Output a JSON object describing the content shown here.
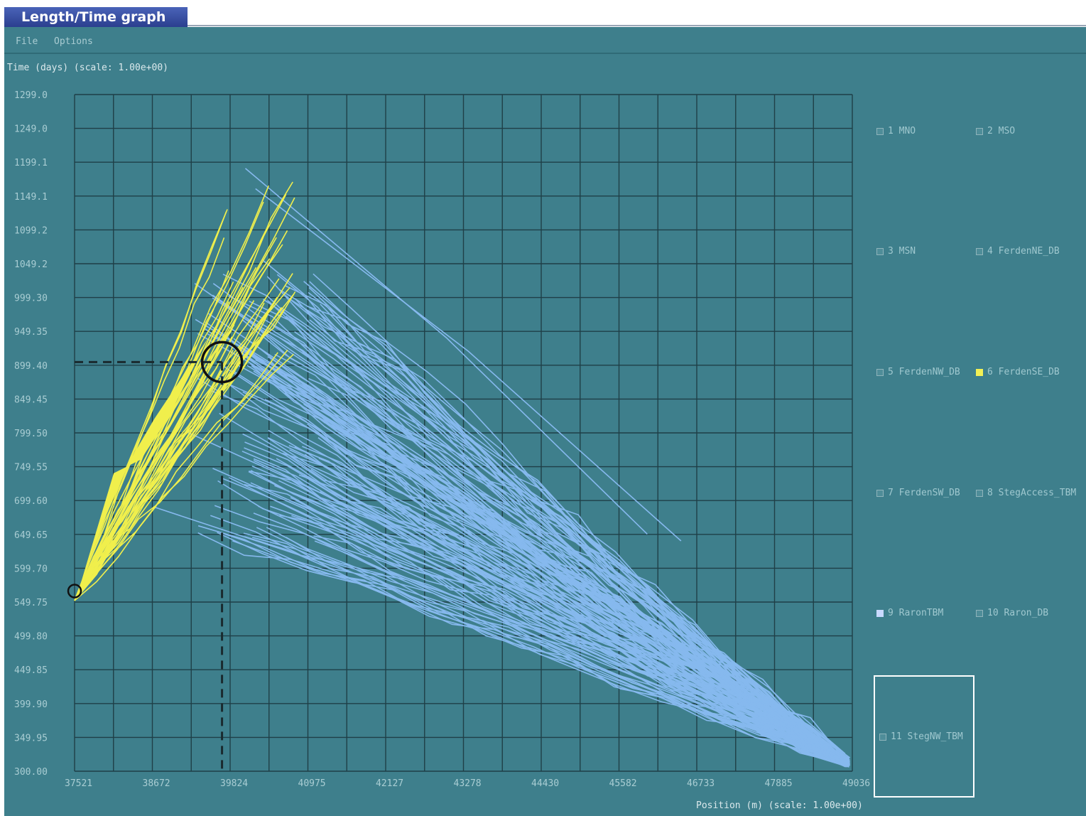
{
  "window": {
    "title": "Length/Time graph"
  },
  "menu": [
    "File",
    "Options"
  ],
  "axes": {
    "y_label": "Time (days) (scale: 1.00e+00)",
    "x_label": "Position (m) (scale: 1.00e+00)",
    "y_ticks": [
      "1299.0",
      "1249.0",
      "1199.1",
      "1149.1",
      "1099.2",
      "1049.2",
      "999.30",
      "949.35",
      "899.40",
      "849.45",
      "799.50",
      "749.55",
      "699.60",
      "649.65",
      "599.70",
      "549.75",
      "499.80",
      "449.85",
      "399.90",
      "349.95",
      "300.00"
    ],
    "x_ticks": [
      "37521",
      "38672",
      "39824",
      "40975",
      "42127",
      "43278",
      "44430",
      "45582",
      "46733",
      "47885",
      "49036"
    ]
  },
  "legend": [
    {
      "label": "1 MNO",
      "state": "off"
    },
    {
      "label": "2 MSO",
      "state": "off"
    },
    {
      "label": "3 MSN",
      "state": "off"
    },
    {
      "label": "4 FerdenNE_DB",
      "state": "off"
    },
    {
      "label": "5 FerdenNW_DB",
      "state": "off"
    },
    {
      "label": "6 FerdenSE_DB",
      "state": "on"
    },
    {
      "label": "7 FerdenSW_DB",
      "state": "off"
    },
    {
      "label": "8 StegAccess_TBM",
      "state": "off"
    },
    {
      "label": "9 RaronTBM",
      "state": "partial"
    },
    {
      "label": "10 Raron_DB",
      "state": "off"
    },
    {
      "label": "11 StegNW_TBM",
      "state": "off"
    }
  ],
  "colors": {
    "yellow_series": "#f0ef4c",
    "blue_series": "#86b9ee",
    "background": "#3e7f8c",
    "grid": "#1f3f47"
  },
  "chart_data": {
    "type": "line",
    "xlim": [
      37521,
      49036
    ],
    "ylim": [
      300.0,
      1299.0
    ],
    "grid": true,
    "legend_placement": "right",
    "annotations": [
      {
        "type": "circle-marker",
        "x": 39704,
        "y": 904
      },
      {
        "type": "circle-marker",
        "x": 37521,
        "y": 566
      },
      {
        "type": "crosshair",
        "x": 39704,
        "y": 904
      }
    ]
  }
}
